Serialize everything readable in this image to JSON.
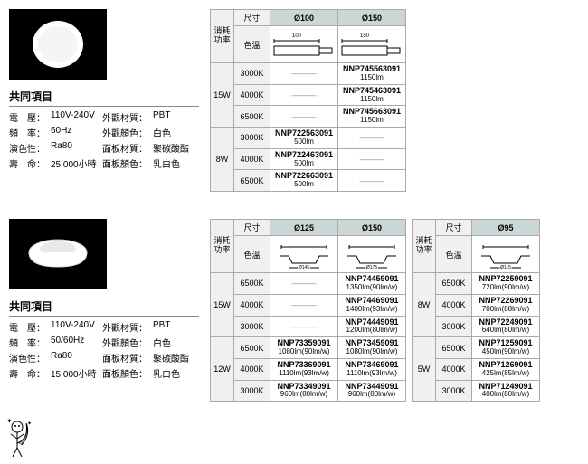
{
  "section1": {
    "common_title": "共同項目",
    "specs": [
      {
        "l": "電　壓：",
        "v": "110V-240V",
        "l2": "外觀材質：",
        "v2": "PBT"
      },
      {
        "l": "頻　率：",
        "v": "60Hz",
        "l2": "外觀顏色：",
        "v2": "白色"
      },
      {
        "l": "演色性：",
        "v": "Ra80",
        "l2": "面板材質：",
        "v2": "聚碳酸酯"
      },
      {
        "l": "壽　命：",
        "v": "25,000小時",
        "l2": "面板顏色：",
        "v2": "乳白色"
      }
    ],
    "table": {
      "side_label": "消耗功率",
      "size_label": "尺寸",
      "temp_label": "色溫",
      "cols": [
        "Ø100",
        "Ø150"
      ],
      "dims": [
        "100",
        "150"
      ],
      "groups": [
        {
          "w": "15W",
          "rows": [
            {
              "t": "3000K",
              "c": [
                "—",
                {
                  "m": "NNP745563091",
                  "lm": "1150lm"
                }
              ]
            },
            {
              "t": "4000K",
              "c": [
                "—",
                {
                  "m": "NNP745463091",
                  "lm": "1150lm"
                }
              ]
            },
            {
              "t": "6500K",
              "c": [
                "—",
                {
                  "m": "NNP745663091",
                  "lm": "1150lm"
                }
              ]
            }
          ]
        },
        {
          "w": "8W",
          "rows": [
            {
              "t": "3000K",
              "c": [
                {
                  "m": "NNP722563091",
                  "lm": "500lm"
                },
                "—"
              ]
            },
            {
              "t": "4000K",
              "c": [
                {
                  "m": "NNP722463091",
                  "lm": "500lm"
                },
                "—"
              ]
            },
            {
              "t": "6500K",
              "c": [
                {
                  "m": "NNP722663091",
                  "lm": "500lm"
                },
                "—"
              ]
            }
          ]
        }
      ]
    }
  },
  "section2": {
    "common_title": "共同項目",
    "specs": [
      {
        "l": "電　壓：",
        "v": "110V-240V",
        "l2": "外觀材質：",
        "v2": "PBT"
      },
      {
        "l": "頻　率：",
        "v": "50/60Hz",
        "l2": "外觀顏色：",
        "v2": "白色"
      },
      {
        "l": "演色性：",
        "v": "Ra80",
        "l2": "面板材質：",
        "v2": "聚碳酸酯"
      },
      {
        "l": "壽　命：",
        "v": "15,000小時",
        "l2": "面板顏色：",
        "v2": "乳白色"
      }
    ],
    "tableA": {
      "side_label": "消耗功率",
      "size_label": "尺寸",
      "temp_label": "色溫",
      "cols": [
        "Ø125",
        "Ø150"
      ],
      "dims": [
        "Ø145",
        "Ø175"
      ],
      "groups": [
        {
          "w": "15W",
          "rows": [
            {
              "t": "6500K",
              "c": [
                "—",
                {
                  "m": "NNP74459091",
                  "lm": "1350lm(90lm/w)"
                }
              ]
            },
            {
              "t": "4000K",
              "c": [
                "—",
                {
                  "m": "NNP74469091",
                  "lm": "1400lm(93lm/w)"
                }
              ]
            },
            {
              "t": "3000K",
              "c": [
                "—",
                {
                  "m": "NNP74449091",
                  "lm": "1200lm(80lm/w)"
                }
              ]
            }
          ]
        },
        {
          "w": "12W",
          "rows": [
            {
              "t": "6500K",
              "c": [
                {
                  "m": "NNP73359091",
                  "lm": "1080lm(90lm/w)"
                },
                {
                  "m": "NNP73459091",
                  "lm": "1080lm(90lm/w)"
                }
              ]
            },
            {
              "t": "4000K",
              "c": [
                {
                  "m": "NNP73369091",
                  "lm": "1110lm(93lm/w)"
                },
                {
                  "m": "NNP73469091",
                  "lm": "1110lm(93lm/w)"
                }
              ]
            },
            {
              "t": "3000K",
              "c": [
                {
                  "m": "NNP73349091",
                  "lm": "960lm(80lm/w)"
                },
                {
                  "m": "NNP73449091",
                  "lm": "960lm(80lm/w)"
                }
              ]
            }
          ]
        }
      ]
    },
    "tableB": {
      "side_label": "消耗功率",
      "size_label": "尺寸",
      "temp_label": "色溫",
      "cols": [
        "Ø95"
      ],
      "dims": [
        "Ø115"
      ],
      "groups": [
        {
          "w": "8W",
          "rows": [
            {
              "t": "6500K",
              "c": [
                {
                  "m": "NNP72259091",
                  "lm": "720lm(90lm/w)"
                }
              ]
            },
            {
              "t": "4000K",
              "c": [
                {
                  "m": "NNP72269091",
                  "lm": "700lm(88lm/w)"
                }
              ]
            },
            {
              "t": "3000K",
              "c": [
                {
                  "m": "NNP72249091",
                  "lm": "640lm(80lm/w)"
                }
              ]
            }
          ]
        },
        {
          "w": "5W",
          "rows": [
            {
              "t": "6500K",
              "c": [
                {
                  "m": "NNP71259091",
                  "lm": "450lm(90lm/w)"
                }
              ]
            },
            {
              "t": "4000K",
              "c": [
                {
                  "m": "NNP71269091",
                  "lm": "425lm(85lm/w)"
                }
              ]
            },
            {
              "t": "3000K",
              "c": [
                {
                  "m": "NNP71249091",
                  "lm": "400lm(80lm/w)"
                }
              ]
            }
          ]
        }
      ]
    }
  }
}
